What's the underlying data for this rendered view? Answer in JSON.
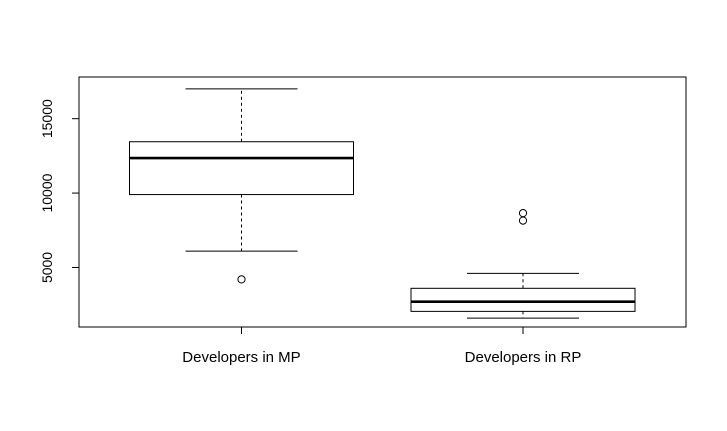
{
  "chart_data": {
    "type": "boxplot",
    "title": "",
    "xlabel": "",
    "ylabel": "",
    "ylim": [
      1000,
      17800
    ],
    "yticks": [
      5000,
      10000,
      15000
    ],
    "ytick_labels": [
      "5000",
      "10000",
      "15000"
    ],
    "grid": false,
    "legend": "none",
    "categories": [
      "Developers in MP",
      "Developers in RP"
    ],
    "boxes": [
      {
        "label": "Developers in MP",
        "whisker_low": 6100,
        "q1": 9900,
        "median": 12350,
        "q3": 13450,
        "whisker_high": 17000,
        "outliers": [
          4200
        ]
      },
      {
        "label": "Developers in RP",
        "whisker_low": 1600,
        "q1": 2050,
        "median": 2700,
        "q3": 3600,
        "whisker_high": 4600,
        "outliers": [
          8150,
          8650
        ]
      }
    ],
    "colors": {
      "stroke": "#000000",
      "box_fill": "#ffffff"
    }
  }
}
